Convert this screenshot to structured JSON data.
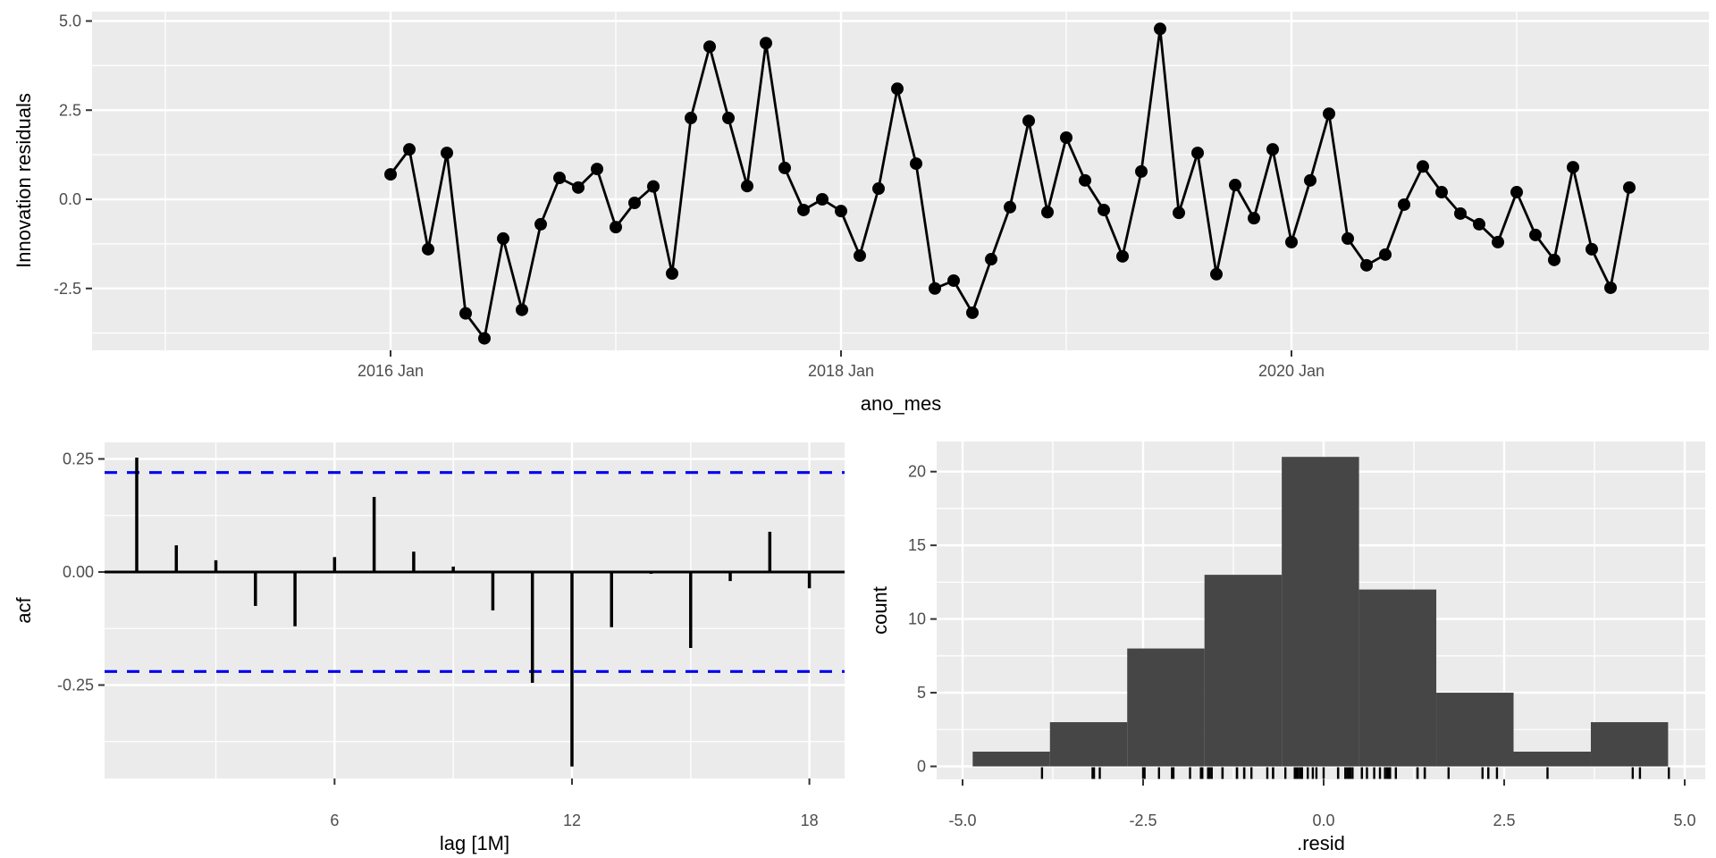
{
  "figure": {
    "background": "#FFFFFF",
    "panel_bg": "#EBEBEB",
    "grid_color": "#FFFFFF",
    "tick_mark_color": "#333333",
    "tick_label_color": "#4D4D4D",
    "axis_title_color": "#000000",
    "series_color": "#000000",
    "hist_fill": "#464646",
    "conf_band_color": "#0000EE"
  },
  "chart_data": [
    {
      "id": "innovation-residuals-timeseries",
      "type": "line",
      "title": "",
      "xlabel": "ano_mes",
      "ylabel": "Innovation residuals",
      "x_start_label": "2016 Jan",
      "frequency": "monthly",
      "x_tick_labels": [
        "2016 Jan",
        "2018 Jan",
        "2020 Jan"
      ],
      "x_tick_month_index": [
        0,
        24,
        48
      ],
      "x_minor_month_index": [
        -12,
        12,
        36,
        60
      ],
      "y_ticks": [
        5.0,
        2.5,
        0.0,
        -2.5
      ],
      "y_tick_labels": [
        "5.0",
        "2.5",
        "0.0",
        "-2.5"
      ],
      "y_minor": [
        3.75,
        1.25,
        -1.25,
        -3.75
      ],
      "ylim": [
        -4.2,
        5.2
      ],
      "grid": true,
      "values": [
        0.7,
        1.4,
        -1.4,
        1.3,
        -3.2,
        -3.9,
        -1.1,
        -3.1,
        -0.7,
        0.6,
        0.33,
        0.85,
        -0.78,
        -0.1,
        0.36,
        -2.08,
        2.28,
        4.28,
        2.28,
        0.37,
        4.38,
        0.88,
        -0.3,
        0.0,
        -0.33,
        -1.58,
        0.3,
        3.1,
        1.0,
        -2.5,
        -2.28,
        -3.18,
        -1.68,
        -0.22,
        2.2,
        -0.36,
        1.73,
        0.53,
        -0.3,
        -1.6,
        0.78,
        4.78,
        -0.38,
        1.3,
        -2.1,
        0.4,
        -0.53,
        1.4,
        -1.2,
        0.53,
        2.4,
        -1.1,
        -1.85,
        -1.55,
        -0.15,
        0.92,
        0.2,
        -0.4,
        -0.7,
        -1.2,
        0.2,
        -1.0,
        -1.7,
        0.9,
        -1.4,
        -2.48,
        0.33
      ]
    },
    {
      "id": "acf",
      "type": "bar",
      "title": "",
      "xlabel": "lag [1M]",
      "ylabel": "acf",
      "x_ticks": [
        6,
        12,
        18
      ],
      "x_tick_labels": [
        "6",
        "12",
        "18"
      ],
      "x_minor": [
        3,
        9,
        15
      ],
      "y_ticks": [
        0.25,
        0.0,
        -0.25
      ],
      "y_tick_labels": [
        "0.25",
        "0.00",
        "-0.25"
      ],
      "y_minor": [
        0.125,
        -0.125,
        -0.375
      ],
      "ylim": [
        -0.45,
        0.29
      ],
      "conf_bounds": [
        0.22,
        -0.22
      ],
      "grid": true,
      "lags": [
        1,
        2,
        3,
        4,
        5,
        6,
        7,
        8,
        9,
        10,
        11,
        12,
        13,
        14,
        15,
        16,
        17,
        18
      ],
      "values": [
        0.253,
        0.059,
        0.026,
        -0.075,
        -0.12,
        0.033,
        0.166,
        0.045,
        0.012,
        -0.085,
        -0.245,
        -0.43,
        -0.122,
        -0.004,
        -0.168,
        -0.02,
        0.089,
        -0.036
      ]
    },
    {
      "id": "residual-histogram",
      "type": "histogram",
      "title": "",
      "xlabel": ".resid",
      "ylabel": "count",
      "x_ticks": [
        -5.0,
        -2.5,
        0.0,
        2.5,
        5.0
      ],
      "x_tick_labels": [
        "-5.0",
        "-2.5",
        "0.0",
        "2.5",
        "5.0"
      ],
      "x_minor": [
        -3.75,
        -1.25,
        1.25,
        3.75
      ],
      "y_ticks": [
        0,
        5,
        10,
        15,
        20
      ],
      "y_tick_labels": [
        "0",
        "5",
        "10",
        "15",
        "20"
      ],
      "y_minor": [
        2.5,
        7.5,
        12.5,
        17.5
      ],
      "ylim": [
        -1,
        22
      ],
      "grid": true,
      "bin_edges": [
        -4.86,
        -3.79,
        -2.72,
        -1.65,
        -0.58,
        0.49,
        1.56,
        2.63,
        3.7,
        4.77
      ],
      "counts": [
        1,
        3,
        8,
        13,
        21,
        12,
        5,
        1,
        3
      ],
      "rug": "residual values (same series as top panel)"
    }
  ]
}
